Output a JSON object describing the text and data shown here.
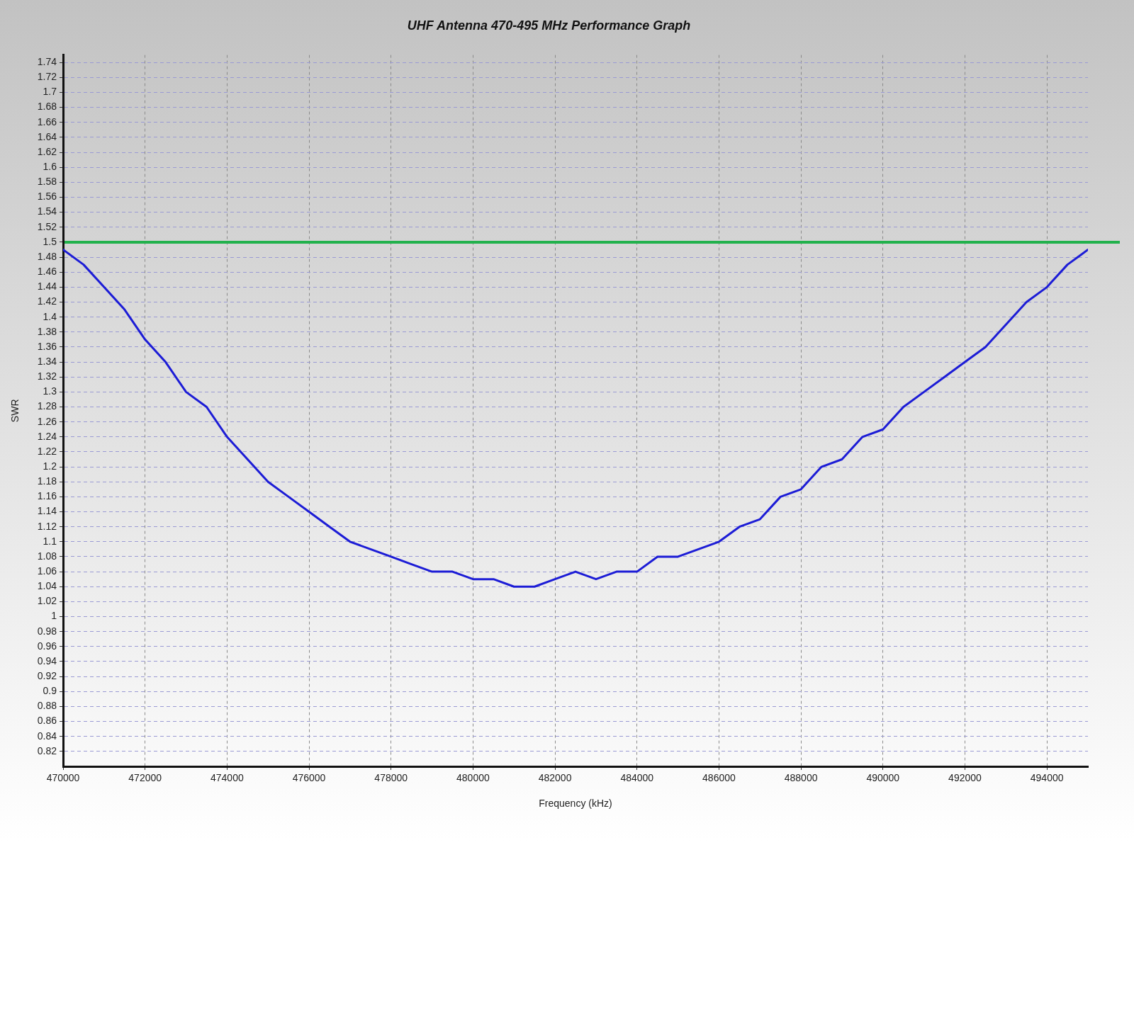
{
  "chart_data": {
    "type": "line",
    "title": "UHF Antenna 470-495 MHz Performance Graph",
    "xlabel": "Frequency (kHz)",
    "ylabel": "SWR",
    "x": [
      470000,
      470500,
      471000,
      471500,
      472000,
      472500,
      473000,
      473500,
      474000,
      474500,
      475000,
      475500,
      476000,
      476500,
      477000,
      477500,
      478000,
      478500,
      479000,
      479500,
      480000,
      480500,
      481000,
      481500,
      482000,
      482500,
      483000,
      483500,
      484000,
      484500,
      485000,
      485500,
      486000,
      486500,
      487000,
      487500,
      488000,
      488500,
      489000,
      489500,
      490000,
      490500,
      491000,
      491500,
      492000,
      492500,
      493000,
      493500,
      494000,
      494500,
      495000
    ],
    "series": [
      {
        "color": "#1c1cd6",
        "values": [
          1.49,
          1.47,
          1.44,
          1.41,
          1.37,
          1.34,
          1.3,
          1.28,
          1.24,
          1.21,
          1.18,
          1.16,
          1.14,
          1.12,
          1.1,
          1.09,
          1.08,
          1.07,
          1.06,
          1.06,
          1.05,
          1.05,
          1.04,
          1.04,
          1.05,
          1.06,
          1.05,
          1.06,
          1.06,
          1.08,
          1.08,
          1.09,
          1.1,
          1.12,
          1.13,
          1.16,
          1.17,
          1.2,
          1.21,
          1.24,
          1.25,
          1.28,
          1.3,
          1.32,
          1.34,
          1.36,
          1.39,
          1.42,
          1.44,
          1.47,
          1.49
        ]
      }
    ],
    "xlim": [
      470000,
      495000
    ],
    "xticks": [
      470000,
      472000,
      474000,
      476000,
      478000,
      480000,
      482000,
      484000,
      486000,
      488000,
      490000,
      492000,
      494000
    ],
    "ylim": [
      0.8,
      1.75
    ],
    "yticks": [
      0.82,
      0.84,
      0.86,
      0.88,
      0.9,
      0.92,
      0.94,
      0.96,
      0.98,
      1,
      1.02,
      1.04,
      1.06,
      1.08,
      1.1,
      1.12,
      1.14,
      1.16,
      1.18,
      1.2,
      1.22,
      1.24,
      1.26,
      1.28,
      1.3,
      1.32,
      1.34,
      1.36,
      1.38,
      1.4,
      1.42,
      1.44,
      1.46,
      1.48,
      1.5,
      1.52,
      1.54,
      1.56,
      1.58,
      1.6,
      1.62,
      1.64,
      1.66,
      1.68,
      1.7,
      1.72,
      1.74
    ],
    "grid": true,
    "ref_lines": [
      {
        "axis": "y",
        "value": 1.5,
        "color": "#22b14c"
      }
    ]
  }
}
